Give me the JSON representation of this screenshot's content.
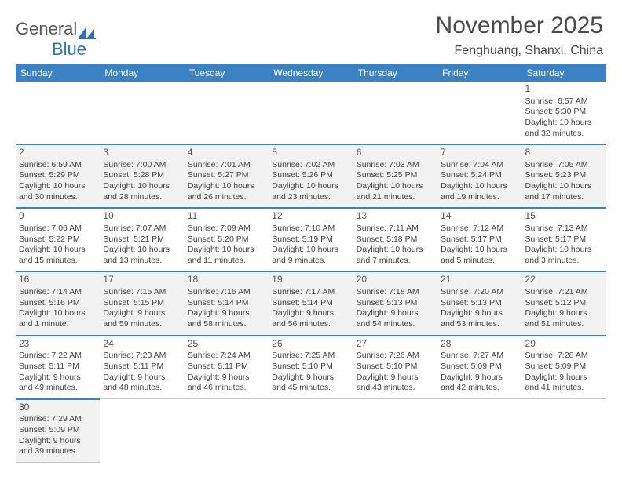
{
  "brand": {
    "part1": "General",
    "part2": "Blue"
  },
  "title": "November 2025",
  "subtitle": "Fenghuang, Shanxi, China",
  "colors": {
    "header_bg": "#3b82c4",
    "header_fg": "#ffffff",
    "row_alt_bg": "#f2f2f2",
    "text": "#444444",
    "title_color": "#4a4a4a",
    "border": "#c8c8c8"
  },
  "weekdays": [
    "Sunday",
    "Monday",
    "Tuesday",
    "Wednesday",
    "Thursday",
    "Friday",
    "Saturday"
  ],
  "weeks": [
    [
      null,
      null,
      null,
      null,
      null,
      null,
      {
        "n": "1",
        "sr": "Sunrise: 6:57 AM",
        "ss": "Sunset: 5:30 PM",
        "d1": "Daylight: 10 hours",
        "d2": "and 32 minutes."
      }
    ],
    [
      {
        "n": "2",
        "sr": "Sunrise: 6:59 AM",
        "ss": "Sunset: 5:29 PM",
        "d1": "Daylight: 10 hours",
        "d2": "and 30 minutes."
      },
      {
        "n": "3",
        "sr": "Sunrise: 7:00 AM",
        "ss": "Sunset: 5:28 PM",
        "d1": "Daylight: 10 hours",
        "d2": "and 28 minutes."
      },
      {
        "n": "4",
        "sr": "Sunrise: 7:01 AM",
        "ss": "Sunset: 5:27 PM",
        "d1": "Daylight: 10 hours",
        "d2": "and 26 minutes."
      },
      {
        "n": "5",
        "sr": "Sunrise: 7:02 AM",
        "ss": "Sunset: 5:26 PM",
        "d1": "Daylight: 10 hours",
        "d2": "and 23 minutes."
      },
      {
        "n": "6",
        "sr": "Sunrise: 7:03 AM",
        "ss": "Sunset: 5:25 PM",
        "d1": "Daylight: 10 hours",
        "d2": "and 21 minutes."
      },
      {
        "n": "7",
        "sr": "Sunrise: 7:04 AM",
        "ss": "Sunset: 5:24 PM",
        "d1": "Daylight: 10 hours",
        "d2": "and 19 minutes."
      },
      {
        "n": "8",
        "sr": "Sunrise: 7:05 AM",
        "ss": "Sunset: 5:23 PM",
        "d1": "Daylight: 10 hours",
        "d2": "and 17 minutes."
      }
    ],
    [
      {
        "n": "9",
        "sr": "Sunrise: 7:06 AM",
        "ss": "Sunset: 5:22 PM",
        "d1": "Daylight: 10 hours",
        "d2": "and 15 minutes."
      },
      {
        "n": "10",
        "sr": "Sunrise: 7:07 AM",
        "ss": "Sunset: 5:21 PM",
        "d1": "Daylight: 10 hours",
        "d2": "and 13 minutes."
      },
      {
        "n": "11",
        "sr": "Sunrise: 7:09 AM",
        "ss": "Sunset: 5:20 PM",
        "d1": "Daylight: 10 hours",
        "d2": "and 11 minutes."
      },
      {
        "n": "12",
        "sr": "Sunrise: 7:10 AM",
        "ss": "Sunset: 5:19 PM",
        "d1": "Daylight: 10 hours",
        "d2": "and 9 minutes."
      },
      {
        "n": "13",
        "sr": "Sunrise: 7:11 AM",
        "ss": "Sunset: 5:18 PM",
        "d1": "Daylight: 10 hours",
        "d2": "and 7 minutes."
      },
      {
        "n": "14",
        "sr": "Sunrise: 7:12 AM",
        "ss": "Sunset: 5:17 PM",
        "d1": "Daylight: 10 hours",
        "d2": "and 5 minutes."
      },
      {
        "n": "15",
        "sr": "Sunrise: 7:13 AM",
        "ss": "Sunset: 5:17 PM",
        "d1": "Daylight: 10 hours",
        "d2": "and 3 minutes."
      }
    ],
    [
      {
        "n": "16",
        "sr": "Sunrise: 7:14 AM",
        "ss": "Sunset: 5:16 PM",
        "d1": "Daylight: 10 hours",
        "d2": "and 1 minute."
      },
      {
        "n": "17",
        "sr": "Sunrise: 7:15 AM",
        "ss": "Sunset: 5:15 PM",
        "d1": "Daylight: 9 hours",
        "d2": "and 59 minutes."
      },
      {
        "n": "18",
        "sr": "Sunrise: 7:16 AM",
        "ss": "Sunset: 5:14 PM",
        "d1": "Daylight: 9 hours",
        "d2": "and 58 minutes."
      },
      {
        "n": "19",
        "sr": "Sunrise: 7:17 AM",
        "ss": "Sunset: 5:14 PM",
        "d1": "Daylight: 9 hours",
        "d2": "and 56 minutes."
      },
      {
        "n": "20",
        "sr": "Sunrise: 7:18 AM",
        "ss": "Sunset: 5:13 PM",
        "d1": "Daylight: 9 hours",
        "d2": "and 54 minutes."
      },
      {
        "n": "21",
        "sr": "Sunrise: 7:20 AM",
        "ss": "Sunset: 5:13 PM",
        "d1": "Daylight: 9 hours",
        "d2": "and 53 minutes."
      },
      {
        "n": "22",
        "sr": "Sunrise: 7:21 AM",
        "ss": "Sunset: 5:12 PM",
        "d1": "Daylight: 9 hours",
        "d2": "and 51 minutes."
      }
    ],
    [
      {
        "n": "23",
        "sr": "Sunrise: 7:22 AM",
        "ss": "Sunset: 5:11 PM",
        "d1": "Daylight: 9 hours",
        "d2": "and 49 minutes."
      },
      {
        "n": "24",
        "sr": "Sunrise: 7:23 AM",
        "ss": "Sunset: 5:11 PM",
        "d1": "Daylight: 9 hours",
        "d2": "and 48 minutes."
      },
      {
        "n": "25",
        "sr": "Sunrise: 7:24 AM",
        "ss": "Sunset: 5:11 PM",
        "d1": "Daylight: 9 hours",
        "d2": "and 46 minutes."
      },
      {
        "n": "26",
        "sr": "Sunrise: 7:25 AM",
        "ss": "Sunset: 5:10 PM",
        "d1": "Daylight: 9 hours",
        "d2": "and 45 minutes."
      },
      {
        "n": "27",
        "sr": "Sunrise: 7:26 AM",
        "ss": "Sunset: 5:10 PM",
        "d1": "Daylight: 9 hours",
        "d2": "and 43 minutes."
      },
      {
        "n": "28",
        "sr": "Sunrise: 7:27 AM",
        "ss": "Sunset: 5:09 PM",
        "d1": "Daylight: 9 hours",
        "d2": "and 42 minutes."
      },
      {
        "n": "29",
        "sr": "Sunrise: 7:28 AM",
        "ss": "Sunset: 5:09 PM",
        "d1": "Daylight: 9 hours",
        "d2": "and 41 minutes."
      }
    ],
    [
      {
        "n": "30",
        "sr": "Sunrise: 7:29 AM",
        "ss": "Sunset: 5:09 PM",
        "d1": "Daylight: 9 hours",
        "d2": "and 39 minutes."
      },
      null,
      null,
      null,
      null,
      null,
      null
    ]
  ]
}
